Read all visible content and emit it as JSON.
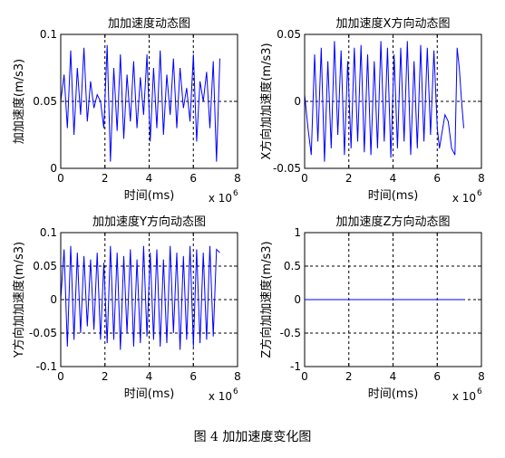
{
  "figure_caption": "图 4  加加速度变化图",
  "chart_data": [
    {
      "type": "line",
      "title": "加加速度动态图",
      "xlabel": "时间(ms)",
      "ylabel": "加加速度(m/s3)",
      "x_multiplier": "x 10",
      "x_multiplier_exp": "6",
      "xlim": [
        0,
        8
      ],
      "ylim": [
        0,
        0.1
      ],
      "xticks": [
        "0",
        "2",
        "4",
        "6",
        "8"
      ],
      "yticks": [
        "0",
        "0.05",
        "0.1"
      ],
      "grid": true,
      "color": "#0000ff",
      "series": [
        {
          "x": [
            0.0,
            0.15,
            0.3,
            0.45,
            0.6,
            0.75,
            0.9,
            1.05,
            1.2,
            1.35,
            1.5,
            1.65,
            1.8,
            1.95,
            2.1,
            2.25,
            2.4,
            2.55,
            2.7,
            2.85,
            3.0,
            3.15,
            3.3,
            3.45,
            3.6,
            3.75,
            3.9,
            4.05,
            4.2,
            4.35,
            4.5,
            4.65,
            4.8,
            4.95,
            5.1,
            5.25,
            5.4,
            5.55,
            5.7,
            5.85,
            6.0,
            6.15,
            6.3,
            6.45,
            6.6,
            6.75,
            6.9,
            7.05,
            7.2
          ],
          "y": [
            0.05,
            0.07,
            0.03,
            0.088,
            0.025,
            0.075,
            0.04,
            0.09,
            0.035,
            0.065,
            0.045,
            0.055,
            0.05,
            0.03,
            0.092,
            0.005,
            0.075,
            0.028,
            0.085,
            0.022,
            0.07,
            0.035,
            0.08,
            0.03,
            0.068,
            0.04,
            0.085,
            0.02,
            0.075,
            0.03,
            0.088,
            0.025,
            0.07,
            0.04,
            0.082,
            0.03,
            0.075,
            0.045,
            0.06,
            0.035,
            0.085,
            0.02,
            0.065,
            0.05,
            0.072,
            0.03,
            0.08,
            0.005,
            0.082
          ]
        }
      ]
    },
    {
      "type": "line",
      "title": "加加速度X方向动态图",
      "xlabel": "时间(ms)",
      "ylabel": "X方向加加速度(m/s3)",
      "x_multiplier": "x 10",
      "x_multiplier_exp": "6",
      "xlim": [
        0,
        8
      ],
      "ylim": [
        -0.05,
        0.05
      ],
      "xticks": [
        "0",
        "2",
        "4",
        "6",
        "8"
      ],
      "yticks": [
        "-0.05",
        "0",
        "0.05"
      ],
      "grid": true,
      "color": "#0000ff",
      "series": [
        {
          "x": [
            0.0,
            0.15,
            0.3,
            0.45,
            0.6,
            0.75,
            0.9,
            1.05,
            1.2,
            1.35,
            1.5,
            1.65,
            1.8,
            1.95,
            2.1,
            2.25,
            2.4,
            2.55,
            2.7,
            2.85,
            3.0,
            3.15,
            3.3,
            3.45,
            3.6,
            3.75,
            3.9,
            4.05,
            4.2,
            4.35,
            4.5,
            4.65,
            4.8,
            4.95,
            5.1,
            5.25,
            5.4,
            5.55,
            5.7,
            5.85,
            6.0,
            6.1,
            6.2,
            6.35,
            6.5,
            6.65,
            6.8,
            6.9,
            7.0,
            7.1,
            7.2
          ],
          "y": [
            0.005,
            -0.02,
            -0.04,
            0.035,
            -0.03,
            0.04,
            -0.045,
            0.03,
            -0.035,
            0.045,
            -0.025,
            0.038,
            -0.04,
            0.03,
            -0.035,
            0.04,
            -0.03,
            0.042,
            -0.038,
            0.035,
            -0.04,
            0.03,
            -0.035,
            0.045,
            -0.03,
            0.04,
            -0.042,
            0.035,
            -0.035,
            0.04,
            -0.03,
            0.045,
            -0.04,
            0.03,
            -0.035,
            0.042,
            -0.03,
            0.04,
            -0.025,
            0.038,
            -0.02,
            -0.035,
            -0.025,
            -0.01,
            -0.015,
            -0.035,
            -0.04,
            0.04,
            0.025,
            0.0,
            -0.02
          ]
        }
      ]
    },
    {
      "type": "line",
      "title": "加加速度Y方向动态图",
      "xlabel": "时间(ms)",
      "ylabel": "Y方向加加速度(m/s3)",
      "x_multiplier": "x 10",
      "x_multiplier_exp": "6",
      "xlim": [
        0,
        8
      ],
      "ylim": [
        -0.1,
        0.1
      ],
      "xticks": [
        "0",
        "2",
        "4",
        "6",
        "8"
      ],
      "yticks": [
        "-0.1",
        "-0.05",
        "0",
        "0.05",
        "0.1"
      ],
      "grid": true,
      "color": "#0000ff",
      "series": [
        {
          "x": [
            0.0,
            0.15,
            0.3,
            0.45,
            0.6,
            0.75,
            0.9,
            1.05,
            1.2,
            1.35,
            1.5,
            1.65,
            1.8,
            1.95,
            2.1,
            2.25,
            2.4,
            2.55,
            2.7,
            2.85,
            3.0,
            3.15,
            3.3,
            3.45,
            3.6,
            3.75,
            3.9,
            4.05,
            4.2,
            4.35,
            4.5,
            4.65,
            4.8,
            4.95,
            5.1,
            5.25,
            5.4,
            5.55,
            5.7,
            5.85,
            6.0,
            6.15,
            6.3,
            6.45,
            6.6,
            6.75,
            6.9,
            7.05,
            7.2
          ],
          "y": [
            0.0,
            0.075,
            -0.07,
            0.08,
            -0.06,
            0.07,
            -0.05,
            0.065,
            -0.04,
            0.06,
            -0.045,
            0.07,
            -0.06,
            0.055,
            -0.065,
            0.08,
            -0.06,
            0.07,
            -0.075,
            0.065,
            -0.05,
            0.075,
            -0.07,
            0.06,
            -0.065,
            0.08,
            -0.055,
            0.07,
            -0.06,
            0.075,
            -0.07,
            0.06,
            -0.065,
            0.08,
            -0.05,
            0.07,
            -0.075,
            0.065,
            -0.06,
            0.08,
            -0.07,
            0.075,
            -0.065,
            0.07,
            -0.06,
            0.08,
            -0.055,
            0.075,
            0.07
          ]
        }
      ]
    },
    {
      "type": "line",
      "title": "加加速度Z方向动态图",
      "xlabel": "时间(ms)",
      "ylabel": "Z方向加加速度(m/s3)",
      "x_multiplier": "x 10",
      "x_multiplier_exp": "6",
      "xlim": [
        0,
        8
      ],
      "ylim": [
        -1,
        1
      ],
      "xticks": [
        "0",
        "2",
        "4",
        "6",
        "8"
      ],
      "yticks": [
        "-1",
        "-0.5",
        "0",
        "0.5",
        "1"
      ],
      "grid": true,
      "color": "#0000ff",
      "series": [
        {
          "x": [
            0,
            7.2
          ],
          "y": [
            0,
            0
          ]
        }
      ]
    }
  ]
}
